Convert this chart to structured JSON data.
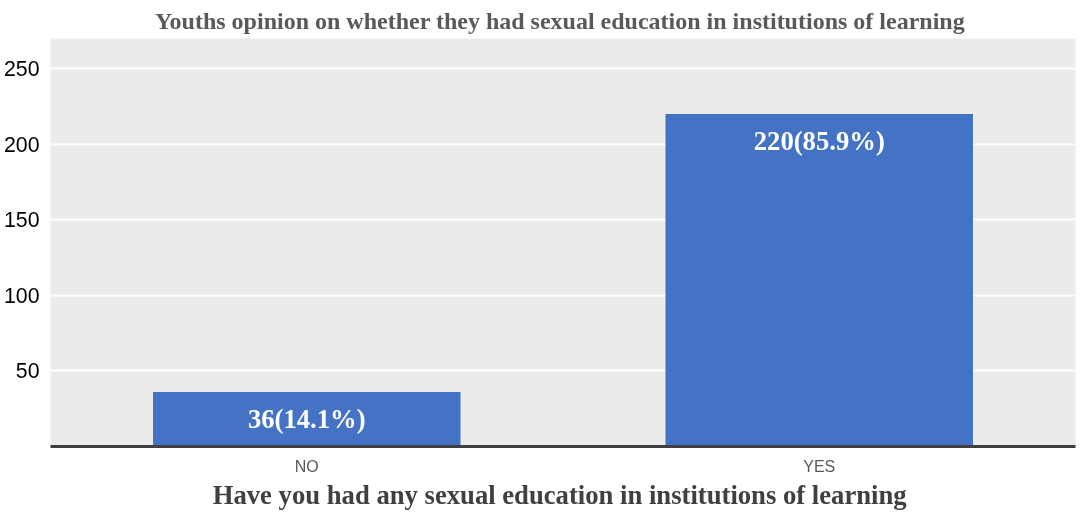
{
  "chart_data": {
    "type": "bar",
    "title": "Youths opinion on whether they had  sexual education in institutions of learning",
    "xlabel": "Have  you had any sexual education in institutions of learning",
    "categories": [
      "NO",
      "YES"
    ],
    "values": [
      36,
      220
    ],
    "value_labels": [
      "36(14.1%)",
      "220(85.9%)"
    ],
    "color": "#4472c4",
    "ylim": [
      0,
      270
    ],
    "yticks": [
      50,
      100,
      150,
      200,
      250
    ],
    "grid": "y"
  }
}
